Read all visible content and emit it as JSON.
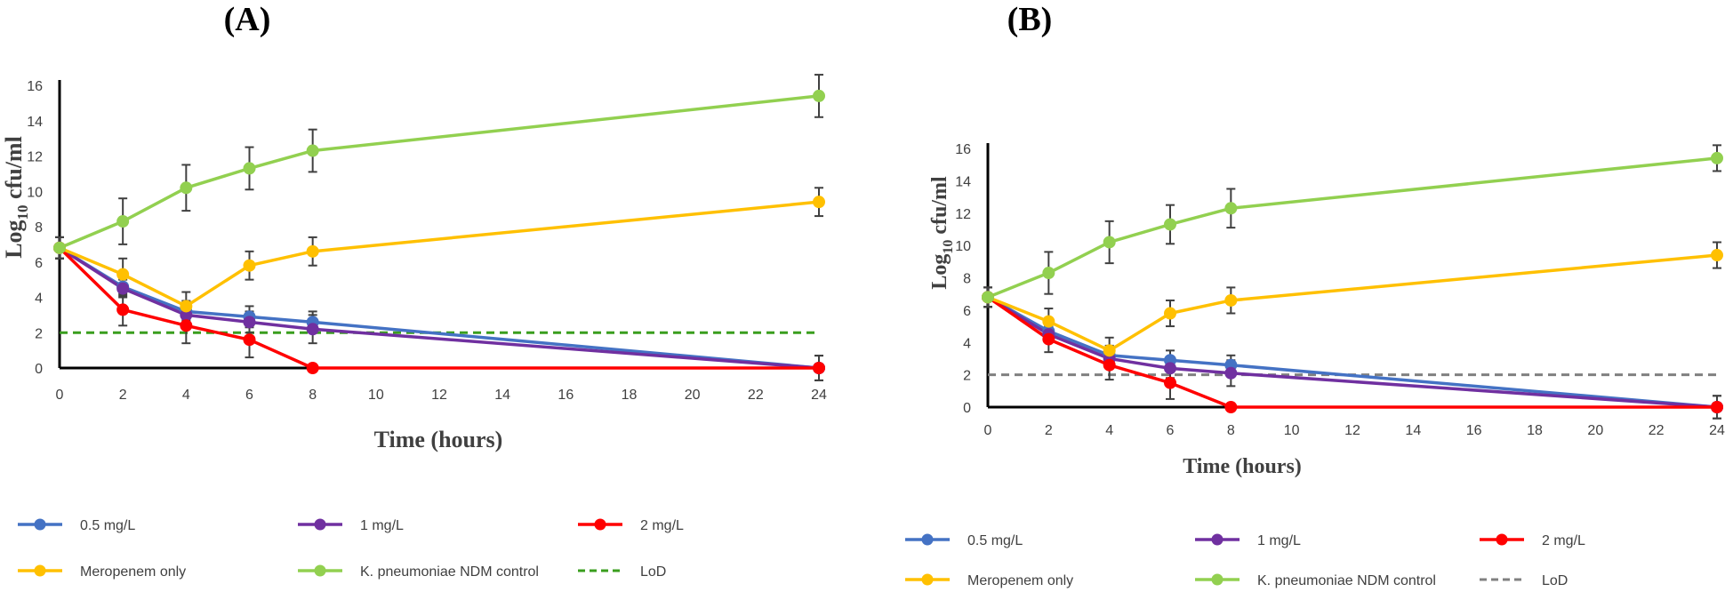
{
  "chart_data": [
    {
      "type": "line",
      "panel_label": "(A)",
      "xlabel": "Time (hours)",
      "ylabel": "Log10 cfu/ml",
      "ylabel_main": "Log",
      "ylabel_sub": "10",
      "ylabel_rest": " cfu/ml",
      "xlim": [
        0,
        24
      ],
      "ylim": [
        0,
        16
      ],
      "x_ticks": [
        "0",
        "2",
        "4",
        "6",
        "8",
        "10",
        "12",
        "14",
        "16",
        "18",
        "20",
        "22",
        "24"
      ],
      "y_ticks": [
        "0",
        "2",
        "4",
        "6",
        "8",
        "10",
        "12",
        "14",
        "16"
      ],
      "grid": false,
      "legend_position": "bottom",
      "x": [
        0,
        2,
        4,
        6,
        8,
        24
      ],
      "series": [
        {
          "name": "0.5 mg/L",
          "color": "#4472C4",
          "values": [
            6.8,
            4.6,
            3.2,
            2.9,
            2.6,
            0
          ],
          "errors": [
            0.6,
            0.5,
            0.6,
            0.6,
            0.6,
            0.7
          ]
        },
        {
          "name": "1 mg/L",
          "color": "#7030A0",
          "values": [
            6.8,
            4.5,
            3.0,
            2.6,
            2.2,
            0
          ],
          "errors": [
            0.6,
            0.5,
            0.5,
            0.6,
            0.8,
            0.7
          ]
        },
        {
          "name": "2 mg/L",
          "color": "#FF0000",
          "values": [
            6.8,
            3.3,
            2.4,
            1.6,
            0,
            0
          ],
          "errors": [
            0.6,
            0.9,
            1.0,
            1.0,
            0,
            0
          ]
        },
        {
          "name": "Meropenem only",
          "color": "#FFC000",
          "values": [
            6.8,
            5.3,
            3.5,
            5.8,
            6.6,
            9.4
          ],
          "errors": [
            0.6,
            0.9,
            0.8,
            0.8,
            0.8,
            0.8
          ]
        },
        {
          "name": "K. pneumoniae NDM control",
          "color": "#92D050",
          "values": [
            6.8,
            8.3,
            10.2,
            11.3,
            12.3,
            15.4
          ],
          "errors": [
            0.6,
            1.3,
            1.3,
            1.2,
            1.2,
            1.2
          ]
        }
      ],
      "lod": {
        "name": "LoD",
        "value": 2,
        "color": "#3A9E1E",
        "style": "dash"
      }
    },
    {
      "type": "line",
      "panel_label": "(B)",
      "xlabel": "Time (hours)",
      "ylabel": "Log10 cfu/ml",
      "ylabel_main": "Log",
      "ylabel_sub": "10",
      "ylabel_rest": " cfu/ml",
      "xlim": [
        0,
        24
      ],
      "ylim": [
        0,
        16
      ],
      "x_ticks": [
        "0",
        "2",
        "4",
        "6",
        "8",
        "10",
        "12",
        "14",
        "16",
        "18",
        "20",
        "22",
        "24"
      ],
      "y_ticks": [
        "0",
        "2",
        "4",
        "6",
        "8",
        "10",
        "12",
        "14",
        "16"
      ],
      "grid": false,
      "legend_position": "bottom",
      "x": [
        0,
        2,
        4,
        6,
        8,
        24
      ],
      "series": [
        {
          "name": "0.5 mg/L",
          "color": "#4472C4",
          "values": [
            6.8,
            4.7,
            3.2,
            2.9,
            2.6,
            0
          ],
          "errors": [
            0.6,
            0.5,
            0.6,
            0.6,
            0.6,
            0.7
          ]
        },
        {
          "name": "1 mg/L",
          "color": "#7030A0",
          "values": [
            6.8,
            4.5,
            3.0,
            2.4,
            2.1,
            0
          ],
          "errors": [
            0.6,
            0.5,
            0.5,
            0.6,
            0.8,
            0.7
          ]
        },
        {
          "name": "2 mg/L",
          "color": "#FF0000",
          "values": [
            6.8,
            4.2,
            2.6,
            1.5,
            0,
            0
          ],
          "errors": [
            0.6,
            0.8,
            0.9,
            1.0,
            0,
            0
          ]
        },
        {
          "name": "Meropenem only",
          "color": "#FFC000",
          "values": [
            6.8,
            5.3,
            3.5,
            5.8,
            6.6,
            9.4
          ],
          "errors": [
            0.6,
            0.8,
            0.8,
            0.8,
            0.8,
            0.8
          ]
        },
        {
          "name": "K. pneumoniae NDM control",
          "color": "#92D050",
          "values": [
            6.8,
            8.3,
            10.2,
            11.3,
            12.3,
            15.4
          ],
          "errors": [
            0.6,
            1.3,
            1.3,
            1.2,
            1.2,
            0.8
          ]
        }
      ],
      "lod": {
        "name": "LoD",
        "value": 2,
        "color": "#808080",
        "style": "dash"
      }
    }
  ]
}
